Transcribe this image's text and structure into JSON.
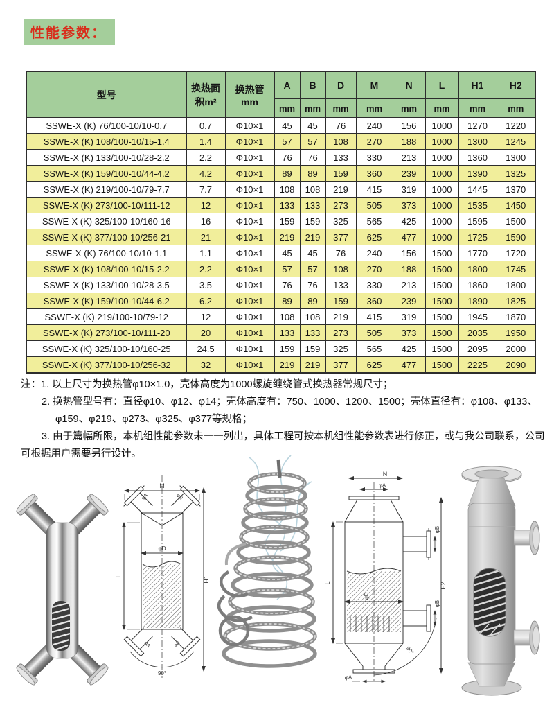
{
  "page_title": "性能参数：",
  "table": {
    "col_model": "型号",
    "col_area_line1": "换热面",
    "col_area_line2": "积m²",
    "col_tube_line1": "换热管",
    "col_tube_line2": "mm",
    "dim_cols": [
      "A",
      "B",
      "D",
      "M",
      "N",
      "L",
      "H1",
      "H2"
    ],
    "unit": "mm",
    "rows": [
      [
        "SSWE-X (K) 76/100-10/10-0.7",
        "0.7",
        "Φ10×1",
        "45",
        "45",
        "76",
        "240",
        "156",
        "1000",
        "1270",
        "1220"
      ],
      [
        "SSWE-X (K) 108/100-10/15-1.4",
        "1.4",
        "Φ10×1",
        "57",
        "57",
        "108",
        "270",
        "188",
        "1000",
        "1300",
        "1245"
      ],
      [
        "SSWE-X (K) 133/100-10/28-2.2",
        "2.2",
        "Φ10×1",
        "76",
        "76",
        "133",
        "330",
        "213",
        "1000",
        "1360",
        "1300"
      ],
      [
        "SSWE-X (K) 159/100-10/44-4.2",
        "4.2",
        "Φ10×1",
        "89",
        "89",
        "159",
        "360",
        "239",
        "1000",
        "1390",
        "1325"
      ],
      [
        "SSWE-X (K) 219/100-10/79-7.7",
        "7.7",
        "Φ10×1",
        "108",
        "108",
        "219",
        "415",
        "319",
        "1000",
        "1445",
        "1370"
      ],
      [
        "SSWE-X (K) 273/100-10/111-12",
        "12",
        "Φ10×1",
        "133",
        "133",
        "273",
        "505",
        "373",
        "1000",
        "1535",
        "1450"
      ],
      [
        "SSWE-X (K) 325/100-10/160-16",
        "16",
        "Φ10×1",
        "159",
        "159",
        "325",
        "565",
        "425",
        "1000",
        "1595",
        "1500"
      ],
      [
        "SSWE-X (K) 377/100-10/256-21",
        "21",
        "Φ10×1",
        "219",
        "219",
        "377",
        "625",
        "477",
        "1000",
        "1725",
        "1590"
      ],
      [
        "SSWE-X (K) 76/100-10/10-1.1",
        "1.1",
        "Φ10×1",
        "45",
        "45",
        "76",
        "240",
        "156",
        "1500",
        "1770",
        "1720"
      ],
      [
        "SSWE-X (K) 108/100-10/15-2.2",
        "2.2",
        "Φ10×1",
        "57",
        "57",
        "108",
        "270",
        "188",
        "1500",
        "1800",
        "1745"
      ],
      [
        "SSWE-X (K) 133/100-10/28-3.5",
        "3.5",
        "Φ10×1",
        "76",
        "76",
        "133",
        "330",
        "213",
        "1500",
        "1860",
        "1800"
      ],
      [
        "SSWE-X (K) 159/100-10/44-6.2",
        "6.2",
        "Φ10×1",
        "89",
        "89",
        "159",
        "360",
        "239",
        "1500",
        "1890",
        "1825"
      ],
      [
        "SSWE-X (K) 219/100-10/79-12",
        "12",
        "Φ10×1",
        "108",
        "108",
        "219",
        "415",
        "319",
        "1500",
        "1945",
        "1870"
      ],
      [
        "SSWE-X (K) 273/100-10/111-20",
        "20",
        "Φ10×1",
        "133",
        "133",
        "273",
        "505",
        "373",
        "1500",
        "2035",
        "1950"
      ],
      [
        "SSWE-X (K) 325/100-10/160-25",
        "24.5",
        "Φ10×1",
        "159",
        "159",
        "325",
        "565",
        "425",
        "1500",
        "2095",
        "2000"
      ],
      [
        "SSWE-X (K) 377/100-10/256-32",
        "32",
        "Φ10×1",
        "219",
        "219",
        "377",
        "625",
        "477",
        "1500",
        "2225",
        "2090"
      ]
    ]
  },
  "notes": {
    "line1": "注：1. 以上尺寸为换热管φ10×1.0，壳体高度为1000螺旋缠绕管式换热器常规尺寸；",
    "line2": "2. 换热管型号有：直径φ10、φ12、φ14；壳体高度有：750、1000、1200、1500；壳体直径有：φ108、φ133、",
    "line3": "φ159、φ219、φ273、φ325、φ377等规格；",
    "line4": "3. 由于篇幅所限，本机组性能参数未一一列出，具体工程可按本机组性能参数表进行修正，或与我公司联系，公司",
    "line5": "可根据用户需要另行设计。"
  },
  "drawing1": {
    "dim_top": "M",
    "dim_left": "L",
    "dim_right": "H1",
    "dia": "φD",
    "nozzle_a": "φA",
    "nozzle_b": "φB",
    "angle": "90°"
  },
  "drawing2": {
    "dim_top": "N",
    "dim_left": "L",
    "dim_right": "H2",
    "dia": "φD",
    "nozzle_a": "φA",
    "nozzle_b": "φB",
    "angle": "90°"
  },
  "colors": {
    "header_green": "#a4ce9b",
    "row_yellow": "#f1ee9b",
    "title_red": "#d92c1b",
    "table_border": "#2d2d2d"
  }
}
